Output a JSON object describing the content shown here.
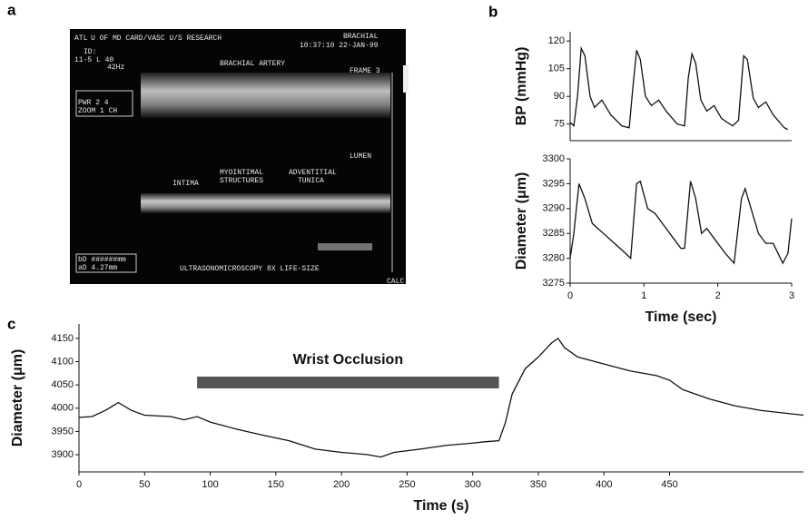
{
  "panel_labels": [
    "a",
    "b",
    "c"
  ],
  "ultrasound": {
    "texts": [
      "ATL",
      "U OF MD CARD/VASC U/S RESEARCH",
      "BRACHIAL",
      "10:37:10 22-JAN-99",
      "ID:",
      "11-5 L 40",
      "42Hz",
      "BRACHIAL ARTERY",
      "FRAME 3",
      "PWR 2 4",
      "ZOOM 1 CH",
      "LUMEN",
      "INTIMA",
      "MYOINTIMAL",
      "STRUCTURES",
      "ADVENTITIAL",
      "TUNICA",
      "bD ######mm",
      "aD 4.27mm",
      "ULTRASONOMICROSCOPY 8X LIFE-SIZE",
      "CALC"
    ]
  },
  "chart_data": [
    {
      "type": "line",
      "y_label": "BP (mmHg)",
      "x": [
        0,
        0.05,
        0.1,
        0.15,
        0.2,
        0.27,
        0.33,
        0.43,
        0.55,
        0.7,
        0.8,
        0.85,
        0.9,
        0.95,
        1.02,
        1.1,
        1.2,
        1.3,
        1.45,
        1.55,
        1.6,
        1.65,
        1.7,
        1.77,
        1.85,
        1.95,
        2.05,
        2.2,
        2.28,
        2.35,
        2.4,
        2.48,
        2.55,
        2.65,
        2.75,
        2.9,
        2.95
      ],
      "series": [
        {
          "color": "#111111",
          "values": [
            76,
            74,
            90,
            116,
            112,
            90,
            84,
            88,
            80,
            74,
            73,
            95,
            115,
            110,
            90,
            85,
            88,
            82,
            75,
            74,
            100,
            113,
            108,
            88,
            82,
            85,
            78,
            74,
            77,
            112,
            110,
            89,
            84,
            87,
            80,
            73,
            72
          ]
        }
      ],
      "xlim": [
        0,
        3
      ],
      "ylim": [
        66,
        125
      ],
      "yticks": [
        75,
        90,
        105,
        120
      ]
    },
    {
      "type": "line",
      "y_label": "Diameter (μm)",
      "x_label": "Time (sec)",
      "x": [
        0,
        0.05,
        0.12,
        0.2,
        0.3,
        0.45,
        0.6,
        0.75,
        0.82,
        0.9,
        0.95,
        1.05,
        1.15,
        1.25,
        1.4,
        1.5,
        1.55,
        1.63,
        1.7,
        1.78,
        1.85,
        1.95,
        2.1,
        2.22,
        2.32,
        2.37,
        2.45,
        2.55,
        2.65,
        2.75,
        2.88,
        2.95,
        3.0
      ],
      "series": [
        {
          "color": "#111111",
          "values": [
            3280,
            3285,
            3295,
            3292,
            3287,
            3285,
            3283,
            3281,
            3280,
            3295,
            3295.5,
            3290,
            3289,
            3287,
            3284,
            3282,
            3282,
            3295.5,
            3292,
            3285,
            3286,
            3284,
            3281,
            3279,
            3292,
            3294,
            3290,
            3285,
            3283,
            3283,
            3279,
            3281,
            3288
          ]
        }
      ],
      "xlim": [
        0,
        3
      ],
      "xticks": [
        0,
        1,
        2,
        3
      ],
      "ylim": [
        3275,
        3300
      ],
      "yticks": [
        3275,
        3280,
        3285,
        3290,
        3295,
        3300
      ]
    },
    {
      "type": "line",
      "y_label": "Diameter (μm)",
      "x_label": "Time (s)",
      "x": [
        0,
        10,
        20,
        30,
        40,
        50,
        70,
        80,
        90,
        100,
        120,
        140,
        160,
        180,
        200,
        220,
        230,
        240,
        260,
        280,
        300,
        310,
        320,
        325,
        330,
        340,
        350,
        360,
        365,
        370,
        380,
        400,
        420,
        440,
        450,
        460,
        480,
        500,
        520,
        552
      ],
      "series": [
        {
          "color": "#111111",
          "values": [
            3980,
            3982,
            3995,
            4012,
            3995,
            3985,
            3982,
            3975,
            3982,
            3970,
            3955,
            3942,
            3930,
            3912,
            3905,
            3900,
            3895,
            3905,
            3912,
            3920,
            3925,
            3928,
            3930,
            3970,
            4030,
            4085,
            4110,
            4140,
            4150,
            4130,
            4110,
            4095,
            4080,
            4070,
            4060,
            4040,
            4020,
            4005,
            3995,
            3985
          ]
        }
      ],
      "occlusion": {
        "label": "Wrist Occlusion",
        "start": 90,
        "end": 320,
        "color": "#555555"
      },
      "xlim": [
        0,
        552
      ],
      "xticks": [
        0,
        50,
        100,
        150,
        200,
        250,
        300,
        350,
        400,
        450
      ],
      "ylim": [
        3863,
        4181
      ],
      "yticks": [
        3900,
        3950,
        4000,
        4050,
        4100,
        4150
      ]
    }
  ]
}
